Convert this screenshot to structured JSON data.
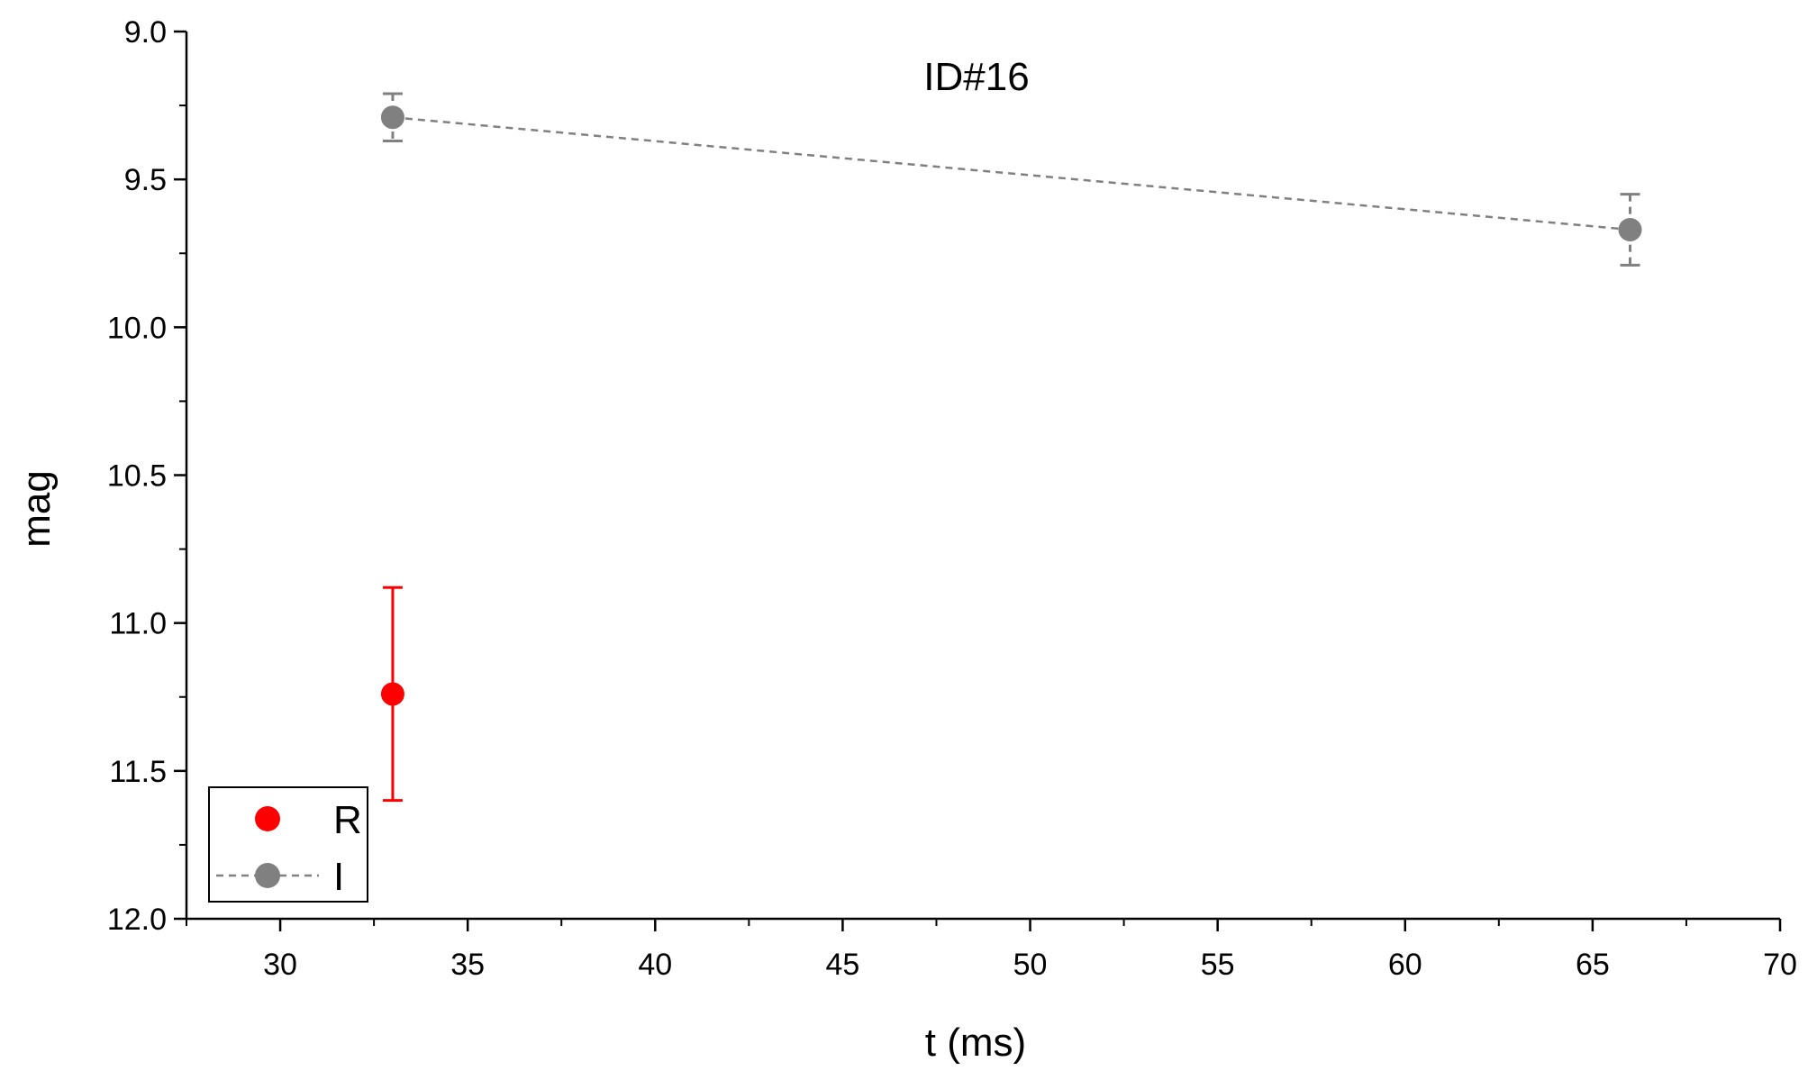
{
  "chart_data": {
    "type": "scatter",
    "title": "ID#16",
    "xlabel": "t (ms)",
    "ylabel": "mag",
    "xlim": [
      27.5,
      70
    ],
    "ylim": [
      9.0,
      12.0
    ],
    "y_inverted": true,
    "x_ticks": [
      30,
      35,
      40,
      45,
      50,
      55,
      60,
      65,
      70
    ],
    "x_tick_labels": [
      "30",
      "35",
      "40",
      "45",
      "50",
      "55",
      "60",
      "65",
      "70"
    ],
    "y_ticks": [
      9.0,
      9.5,
      10.0,
      10.5,
      11.0,
      11.5,
      12.0
    ],
    "y_tick_labels": [
      "9.0",
      "9.5",
      "10.0",
      "10.5",
      "11.0",
      "11.5",
      "12.0"
    ],
    "grid": false,
    "legend_position": "bottom-left",
    "series": [
      {
        "name": "R",
        "color": "#ff0000",
        "line": "none",
        "points": [
          {
            "x": 33,
            "y": 11.24,
            "err_low": 0.36,
            "err_high": 0.36
          }
        ]
      },
      {
        "name": "I",
        "color": "#808080",
        "line": "dashed",
        "points": [
          {
            "x": 33,
            "y": 9.29,
            "err_low": 0.08,
            "err_high": 0.08
          },
          {
            "x": 66,
            "y": 9.67,
            "err_low": 0.12,
            "err_high": 0.12
          }
        ]
      }
    ]
  }
}
